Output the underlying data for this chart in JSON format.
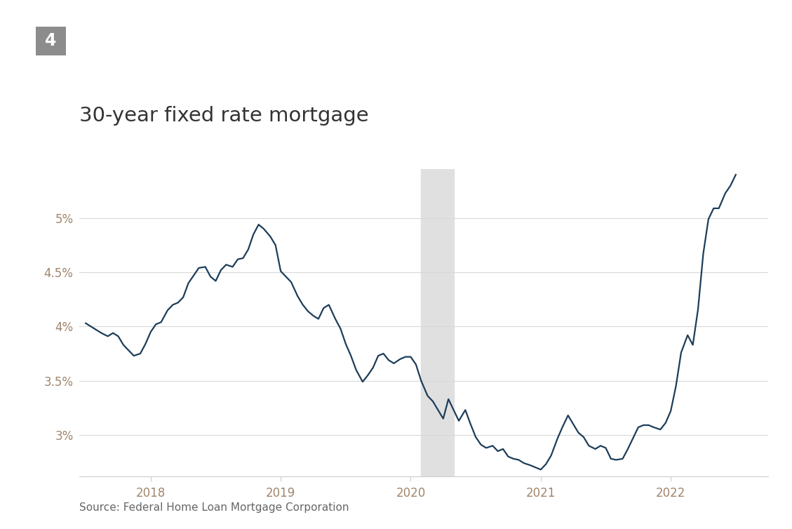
{
  "title": "30-year fixed rate mortgage",
  "chart_number": "4",
  "source": "Source: Federal Home Loan Mortgage Corporation",
  "line_color": "#1c3d5a",
  "background_color": "#ffffff",
  "shade_color": "#e0e0e0",
  "shade_start": 2020.08,
  "shade_end": 2020.33,
  "yticks": [
    3.0,
    3.5,
    4.0,
    4.5,
    5.0
  ],
  "ytick_labels": [
    "3%",
    "3.5%",
    "4%",
    "4.5%",
    "5%"
  ],
  "xticks": [
    2018,
    2019,
    2020,
    2021,
    2022
  ],
  "xlim": [
    2017.45,
    2022.75
  ],
  "ylim": [
    2.62,
    5.45
  ],
  "tick_color": "#a0856c",
  "grid_color": "#d8d8d8",
  "spine_color": "#cccccc",
  "title_color": "#333333",
  "source_color": "#666666",
  "badge_color": "#8c8c8c",
  "data": [
    [
      2017.5,
      4.03
    ],
    [
      2017.54,
      4.0
    ],
    [
      2017.58,
      3.97
    ],
    [
      2017.62,
      3.94
    ],
    [
      2017.67,
      3.91
    ],
    [
      2017.71,
      3.94
    ],
    [
      2017.75,
      3.91
    ],
    [
      2017.79,
      3.83
    ],
    [
      2017.83,
      3.78
    ],
    [
      2017.87,
      3.73
    ],
    [
      2017.92,
      3.75
    ],
    [
      2017.96,
      3.84
    ],
    [
      2018.0,
      3.95
    ],
    [
      2018.04,
      4.02
    ],
    [
      2018.08,
      4.04
    ],
    [
      2018.13,
      4.15
    ],
    [
      2018.17,
      4.2
    ],
    [
      2018.21,
      4.22
    ],
    [
      2018.25,
      4.27
    ],
    [
      2018.29,
      4.4
    ],
    [
      2018.33,
      4.47
    ],
    [
      2018.37,
      4.54
    ],
    [
      2018.42,
      4.55
    ],
    [
      2018.46,
      4.46
    ],
    [
      2018.5,
      4.42
    ],
    [
      2018.54,
      4.52
    ],
    [
      2018.58,
      4.57
    ],
    [
      2018.63,
      4.55
    ],
    [
      2018.67,
      4.62
    ],
    [
      2018.71,
      4.63
    ],
    [
      2018.75,
      4.71
    ],
    [
      2018.79,
      4.85
    ],
    [
      2018.83,
      4.94
    ],
    [
      2018.87,
      4.9
    ],
    [
      2018.92,
      4.83
    ],
    [
      2018.96,
      4.75
    ],
    [
      2019.0,
      4.51
    ],
    [
      2019.04,
      4.46
    ],
    [
      2019.08,
      4.41
    ],
    [
      2019.13,
      4.28
    ],
    [
      2019.17,
      4.2
    ],
    [
      2019.21,
      4.14
    ],
    [
      2019.25,
      4.1
    ],
    [
      2019.29,
      4.07
    ],
    [
      2019.33,
      4.17
    ],
    [
      2019.37,
      4.2
    ],
    [
      2019.42,
      4.07
    ],
    [
      2019.46,
      3.98
    ],
    [
      2019.5,
      3.84
    ],
    [
      2019.54,
      3.73
    ],
    [
      2019.58,
      3.6
    ],
    [
      2019.63,
      3.49
    ],
    [
      2019.67,
      3.55
    ],
    [
      2019.71,
      3.62
    ],
    [
      2019.75,
      3.73
    ],
    [
      2019.79,
      3.75
    ],
    [
      2019.83,
      3.69
    ],
    [
      2019.87,
      3.66
    ],
    [
      2019.92,
      3.7
    ],
    [
      2019.96,
      3.72
    ],
    [
      2020.0,
      3.72
    ],
    [
      2020.04,
      3.65
    ],
    [
      2020.08,
      3.5
    ],
    [
      2020.13,
      3.36
    ],
    [
      2020.17,
      3.31
    ],
    [
      2020.21,
      3.23
    ],
    [
      2020.25,
      3.15
    ],
    [
      2020.29,
      3.33
    ],
    [
      2020.33,
      3.23
    ],
    [
      2020.37,
      3.13
    ],
    [
      2020.42,
      3.23
    ],
    [
      2020.46,
      3.1
    ],
    [
      2020.5,
      2.98
    ],
    [
      2020.54,
      2.91
    ],
    [
      2020.58,
      2.88
    ],
    [
      2020.63,
      2.9
    ],
    [
      2020.67,
      2.85
    ],
    [
      2020.71,
      2.87
    ],
    [
      2020.75,
      2.8
    ],
    [
      2020.79,
      2.78
    ],
    [
      2020.83,
      2.77
    ],
    [
      2020.87,
      2.74
    ],
    [
      2020.92,
      2.72
    ],
    [
      2020.96,
      2.7
    ],
    [
      2021.0,
      2.68
    ],
    [
      2021.04,
      2.73
    ],
    [
      2021.08,
      2.81
    ],
    [
      2021.13,
      2.97
    ],
    [
      2021.17,
      3.08
    ],
    [
      2021.21,
      3.18
    ],
    [
      2021.25,
      3.1
    ],
    [
      2021.29,
      3.02
    ],
    [
      2021.33,
      2.98
    ],
    [
      2021.37,
      2.9
    ],
    [
      2021.42,
      2.87
    ],
    [
      2021.46,
      2.9
    ],
    [
      2021.5,
      2.88
    ],
    [
      2021.54,
      2.78
    ],
    [
      2021.58,
      2.77
    ],
    [
      2021.63,
      2.78
    ],
    [
      2021.67,
      2.87
    ],
    [
      2021.71,
      2.97
    ],
    [
      2021.75,
      3.07
    ],
    [
      2021.79,
      3.09
    ],
    [
      2021.83,
      3.09
    ],
    [
      2021.87,
      3.07
    ],
    [
      2021.92,
      3.05
    ],
    [
      2021.96,
      3.11
    ],
    [
      2022.0,
      3.22
    ],
    [
      2022.04,
      3.45
    ],
    [
      2022.08,
      3.76
    ],
    [
      2022.13,
      3.92
    ],
    [
      2022.17,
      3.83
    ],
    [
      2022.21,
      4.16
    ],
    [
      2022.25,
      4.67
    ],
    [
      2022.29,
      4.99
    ],
    [
      2022.33,
      5.09
    ],
    [
      2022.37,
      5.09
    ],
    [
      2022.42,
      5.23
    ],
    [
      2022.46,
      5.3
    ],
    [
      2022.5,
      5.4
    ]
  ]
}
